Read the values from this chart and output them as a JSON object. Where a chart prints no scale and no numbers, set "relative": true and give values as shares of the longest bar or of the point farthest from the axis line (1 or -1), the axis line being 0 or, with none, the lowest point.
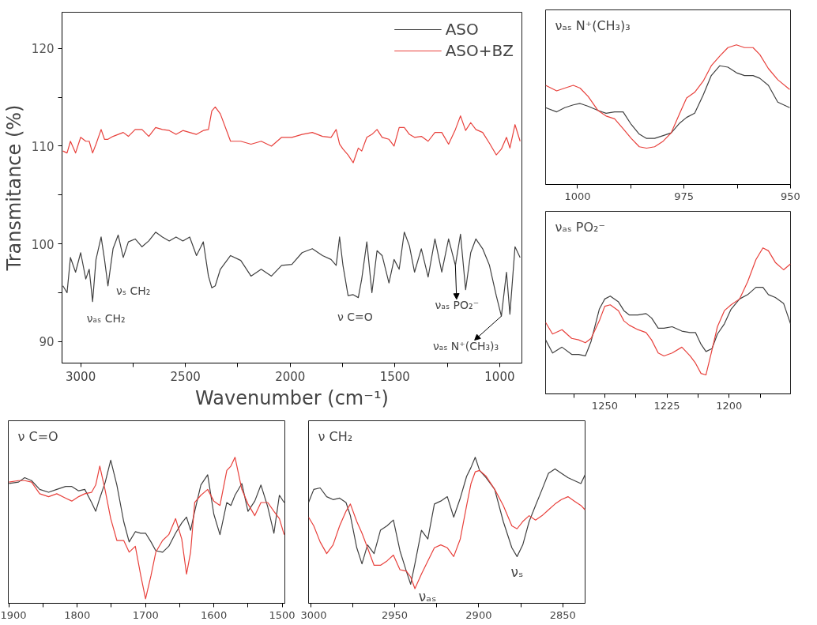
{
  "chart_data": [
    {
      "type": "line",
      "xlabel": "Wavenumber (cm⁻¹)",
      "ylabel": "Transmitance (%)",
      "legend": "top right",
      "grid": false,
      "xlim": [
        3089,
        894
      ],
      "ylim": [
        87.8,
        123.7
      ],
      "xticks": [
        3000,
        {
          "value": 2750,
          "label": null
        },
        2500,
        {
          "value": 2250,
          "label": null
        },
        2000,
        {
          "value": 1750,
          "label": null
        },
        1500,
        {
          "value": 1250,
          "label": null
        },
        1000
      ],
      "yticks": [
        90,
        {
          "value": 95,
          "label": null
        },
        100,
        {
          "value": 105,
          "label": null
        },
        110,
        {
          "value": 115,
          "label": null
        },
        120
      ],
      "x": [
        3084.6,
        3065.0,
        3048.8,
        3024.4,
        3000,
        2975.6,
        2959.3,
        2943.1,
        2926.8,
        2902.4,
        2886.2,
        2869.9,
        2845.5,
        2821.1,
        2796.7,
        2772.4,
        2739.8,
        2707.3,
        2674.8,
        2642.3,
        2609.8,
        2577.2,
        2544.7,
        2512.2,
        2479.7,
        2447.2,
        2414.6,
        2390.2,
        2374.0,
        2357.7,
        2333.3,
        2284.6,
        2235.8,
        2187.0,
        2138.2,
        2089.4,
        2040.7,
        1991.9,
        1943.1,
        1894.3,
        1845.5,
        1804.9,
        1780.5,
        1764.2,
        1748.0,
        1723.6,
        1699.2,
        1674.8,
        1658.5,
        1634.1,
        1609.8,
        1585.4,
        1561.0,
        1528.5,
        1504.1,
        1479.7,
        1455.3,
        1430.9,
        1406.5,
        1374.0,
        1341.5,
        1309.0,
        1276.4,
        1243.9,
        1211.4,
        1187.0,
        1162.6,
        1138.2,
        1113.8,
        1081.3,
        1048.8,
        1016.3,
        991.9,
        967.5,
        951.2,
        926.8,
        902.4
      ],
      "series": [
        {
          "name": "ASO",
          "color": "#404040",
          "values": [
            95.7,
            95.0,
            98.6,
            97.1,
            99.1,
            96.4,
            97.4,
            94.1,
            98.4,
            100.7,
            98.4,
            95.7,
            99.5,
            100.9,
            98.6,
            100.2,
            100.5,
            99.7,
            100.3,
            101.2,
            100.7,
            100.3,
            100.7,
            100.3,
            100.7,
            98.8,
            100.2,
            96.7,
            95.5,
            95.7,
            97.4,
            98.8,
            98.3,
            96.7,
            97.4,
            96.7,
            97.8,
            97.9,
            99.1,
            99.5,
            98.8,
            98.4,
            97.8,
            100.7,
            97.8,
            94.7,
            94.8,
            94.5,
            96.4,
            100.2,
            95.0,
            99.3,
            98.8,
            96.0,
            98.4,
            97.4,
            101.2,
            99.8,
            97.1,
            99.5,
            96.6,
            100.5,
            97.1,
            100.5,
            97.8,
            101.0,
            95.3,
            99.1,
            100.5,
            99.5,
            97.8,
            94.7,
            92.6,
            97.1,
            92.8,
            99.7,
            98.6
          ]
        },
        {
          "name": "ASO+BZ",
          "color": "#e8413c",
          "values": [
            109.5,
            109.3,
            110.5,
            109.3,
            110.9,
            110.5,
            110.5,
            109.3,
            110.2,
            111.7,
            110.7,
            110.7,
            111.0,
            111.2,
            111.4,
            111.0,
            111.7,
            111.7,
            111.0,
            111.9,
            111.7,
            111.6,
            111.2,
            111.6,
            111.4,
            111.2,
            111.6,
            111.7,
            113.6,
            114.0,
            113.3,
            110.5,
            110.5,
            110.2,
            110.5,
            110.0,
            110.9,
            110.9,
            111.2,
            111.4,
            111.0,
            110.9,
            111.7,
            110.2,
            109.7,
            109.1,
            108.3,
            109.8,
            109.5,
            110.9,
            111.2,
            111.7,
            110.9,
            110.7,
            110.0,
            111.9,
            111.9,
            111.2,
            110.9,
            111.0,
            110.5,
            111.4,
            111.4,
            110.2,
            111.7,
            113.1,
            111.6,
            112.4,
            111.7,
            111.4,
            110.3,
            109.1,
            109.7,
            110.9,
            109.8,
            112.2,
            110.5
          ]
        }
      ],
      "annotations": [
        {
          "text": "νₐₛ CH₂",
          "x": 2943.1,
          "y": 94.1
        },
        {
          "text": "νₛ CH₂",
          "x": 2869.9,
          "y": 95.7
        },
        {
          "text": "ν C=O",
          "x": 1674.8,
          "y": 94.5
        },
        {
          "text": "νₐₛ PO₂⁻",
          "x": 1211.4,
          "y": 97.8
        },
        {
          "text": "νₐₛ N⁺(CH₃)₃",
          "x": 991.9,
          "y": 92.6
        }
      ]
    },
    {
      "type": "line",
      "title": "νₐₛ N⁺(CH₃)₃",
      "relative": true,
      "tick_labels": "x",
      "grid": false,
      "legend": false,
      "xlim": [
        1007.5,
        950
      ],
      "xticks": [
        1000,
        {
          "value": 987.5,
          "label": null
        },
        975,
        {
          "value": 962.5,
          "label": null
        },
        950
      ],
      "x": [
        1007.5,
        1004.9,
        1003.0,
        1001.0,
        999.4,
        997.5,
        995.2,
        993.3,
        991.3,
        989.3,
        987.4,
        985.5,
        983.8,
        981.9,
        979.9,
        978.0,
        976.0,
        974.4,
        972.5,
        970.5,
        968.6,
        966.6,
        964.7,
        962.7,
        960.8,
        958.8,
        957.2,
        955.2,
        953.0,
        950.2
      ],
      "series": [
        {
          "color": "#404040",
          "values": [
            0.55,
            0.52,
            0.55,
            0.57,
            0.58,
            0.56,
            0.53,
            0.51,
            0.52,
            0.52,
            0.43,
            0.36,
            0.33,
            0.33,
            0.35,
            0.37,
            0.44,
            0.48,
            0.51,
            0.64,
            0.78,
            0.85,
            0.84,
            0.8,
            0.78,
            0.78,
            0.76,
            0.71,
            0.59,
            0.55
          ]
        },
        {
          "color": "#e8413c",
          "values": [
            0.71,
            0.67,
            0.69,
            0.71,
            0.69,
            0.63,
            0.53,
            0.49,
            0.47,
            0.4,
            0.33,
            0.27,
            0.26,
            0.27,
            0.31,
            0.37,
            0.51,
            0.62,
            0.66,
            0.74,
            0.85,
            0.92,
            0.98,
            1.0,
            0.98,
            0.98,
            0.93,
            0.83,
            0.75,
            0.68
          ]
        }
      ]
    },
    {
      "type": "line",
      "title": "νₐₛ PO₂⁻",
      "relative": true,
      "tick_labels": "x",
      "grid": false,
      "legend": false,
      "xlim": [
        1273.8,
        1175.3
      ],
      "xticks": [
        {
          "value": 1262.5,
          "label": null
        },
        1250,
        {
          "value": 1237.5,
          "label": null
        },
        1225,
        {
          "value": 1212.5,
          "label": null
        },
        1200,
        {
          "value": 1187.5,
          "label": null
        }
      ],
      "x": [
        1273.8,
        1271.0,
        1267.2,
        1263.3,
        1260.5,
        1257.8,
        1255.5,
        1252.2,
        1250.0,
        1247.8,
        1244.5,
        1242.3,
        1240.1,
        1236.7,
        1233.4,
        1231.2,
        1228.5,
        1226.2,
        1222.9,
        1219.0,
        1215.7,
        1213.5,
        1211.3,
        1209.3,
        1206.9,
        1204.7,
        1201.9,
        1199.2,
        1195.8,
        1192.5,
        1189.2,
        1186.4,
        1184.2,
        1181.4,
        1178.1,
        1175.3
      ],
      "series": [
        {
          "color": "#404040",
          "values": [
            0.37,
            0.28,
            0.32,
            0.27,
            0.27,
            0.26,
            0.36,
            0.58,
            0.65,
            0.67,
            0.63,
            0.57,
            0.54,
            0.54,
            0.55,
            0.52,
            0.45,
            0.45,
            0.46,
            0.43,
            0.42,
            0.42,
            0.34,
            0.29,
            0.31,
            0.41,
            0.48,
            0.58,
            0.65,
            0.68,
            0.73,
            0.73,
            0.68,
            0.66,
            0.62,
            0.48
          ]
        },
        {
          "color": "#e8413c",
          "values": [
            0.49,
            0.41,
            0.44,
            0.38,
            0.37,
            0.35,
            0.38,
            0.5,
            0.6,
            0.61,
            0.57,
            0.5,
            0.47,
            0.44,
            0.42,
            0.37,
            0.28,
            0.26,
            0.28,
            0.32,
            0.26,
            0.21,
            0.14,
            0.13,
            0.3,
            0.46,
            0.57,
            0.61,
            0.65,
            0.77,
            0.92,
            1.0,
            0.98,
            0.9,
            0.85,
            0.89
          ]
        }
      ]
    },
    {
      "type": "line",
      "title": "ν C=O",
      "relative": true,
      "tick_labels": "x",
      "grid": false,
      "legend": false,
      "xlim": [
        1901,
        1496
      ],
      "xticks": [
        1900,
        {
          "value": 1850,
          "label": null
        },
        1800,
        {
          "value": 1750,
          "label": null
        },
        1700,
        {
          "value": 1650,
          "label": null
        },
        1600,
        {
          "value": 1550,
          "label": null
        },
        1500
      ],
      "x": [
        1900,
        1886,
        1877,
        1867,
        1855,
        1842,
        1830,
        1817,
        1808,
        1798,
        1789,
        1779,
        1773,
        1767,
        1759,
        1751,
        1742,
        1732,
        1724,
        1715,
        1707,
        1700,
        1692,
        1685,
        1675,
        1666,
        1656,
        1647,
        1640,
        1634,
        1628,
        1619,
        1609,
        1600,
        1591,
        1581,
        1575,
        1569,
        1559,
        1550,
        1540,
        1531,
        1521,
        1512,
        1504,
        1497
      ],
      "series": [
        {
          "color": "#404040",
          "values": [
            0.82,
            0.83,
            0.86,
            0.84,
            0.78,
            0.76,
            0.78,
            0.8,
            0.8,
            0.77,
            0.78,
            0.69,
            0.63,
            0.72,
            0.83,
            0.98,
            0.81,
            0.56,
            0.42,
            0.49,
            0.48,
            0.48,
            0.42,
            0.36,
            0.35,
            0.39,
            0.48,
            0.55,
            0.59,
            0.5,
            0.63,
            0.81,
            0.88,
            0.61,
            0.47,
            0.69,
            0.67,
            0.74,
            0.82,
            0.63,
            0.7,
            0.81,
            0.66,
            0.48,
            0.74,
            0.69
          ]
        },
        {
          "color": "#e8413c",
          "values": [
            0.83,
            0.84,
            0.84,
            0.83,
            0.75,
            0.73,
            0.75,
            0.72,
            0.7,
            0.73,
            0.75,
            0.76,
            0.81,
            0.94,
            0.77,
            0.58,
            0.43,
            0.43,
            0.35,
            0.39,
            0.19,
            0.03,
            0.19,
            0.35,
            0.43,
            0.47,
            0.58,
            0.44,
            0.2,
            0.35,
            0.69,
            0.74,
            0.78,
            0.7,
            0.67,
            0.91,
            0.94,
            1.0,
            0.78,
            0.68,
            0.6,
            0.69,
            0.69,
            0.63,
            0.58,
            0.47
          ]
        }
      ]
    },
    {
      "type": "line",
      "title": "ν CH₂",
      "relative": true,
      "tick_labels": "x",
      "grid": false,
      "legend": false,
      "xlim": [
        3001.3,
        2836.7
      ],
      "xticks": [
        3000,
        {
          "value": 2975,
          "label": null
        },
        2950,
        {
          "value": 2925,
          "label": null
        },
        2900,
        {
          "value": 2875,
          "label": null
        },
        2850
      ],
      "x": [
        3001.3,
        2998.2,
        2994.4,
        2990.5,
        2986.7,
        2982.8,
        2979.0,
        2976.4,
        2972.6,
        2969.5,
        2966.2,
        2962.3,
        2958.5,
        2954.6,
        2950.8,
        2946.9,
        2943.1,
        2940.5,
        2938.0,
        2934.1,
        2930.3,
        2926.4,
        2922.6,
        2918.7,
        2914.9,
        2911.0,
        2907.2,
        2904.6,
        2902.1,
        2899.5,
        2895.6,
        2890.5,
        2885.4,
        2880.3,
        2877.2,
        2873.8,
        2870.0,
        2866.2,
        2862.3,
        2858.5,
        2854.6,
        2850.8,
        2846.9,
        2843.1,
        2839.2,
        2836.7
      ],
      "series": [
        {
          "color": "#404040",
          "values": [
            0.69,
            0.78,
            0.79,
            0.73,
            0.71,
            0.72,
            0.69,
            0.6,
            0.38,
            0.27,
            0.4,
            0.34,
            0.5,
            0.53,
            0.57,
            0.36,
            0.22,
            0.13,
            0.27,
            0.5,
            0.44,
            0.68,
            0.7,
            0.73,
            0.59,
            0.72,
            0.87,
            0.93,
            1.0,
            0.91,
            0.86,
            0.78,
            0.56,
            0.38,
            0.32,
            0.4,
            0.56,
            0.67,
            0.78,
            0.89,
            0.92,
            0.89,
            0.86,
            0.84,
            0.82,
            0.88
          ]
        },
        {
          "color": "#e8413c",
          "values": [
            0.59,
            0.53,
            0.42,
            0.34,
            0.4,
            0.53,
            0.63,
            0.68,
            0.56,
            0.48,
            0.38,
            0.26,
            0.26,
            0.29,
            0.33,
            0.23,
            0.22,
            0.18,
            0.1,
            0.2,
            0.29,
            0.38,
            0.4,
            0.38,
            0.32,
            0.44,
            0.67,
            0.82,
            0.9,
            0.91,
            0.87,
            0.78,
            0.67,
            0.53,
            0.51,
            0.56,
            0.6,
            0.57,
            0.6,
            0.64,
            0.68,
            0.71,
            0.73,
            0.7,
            0.67,
            0.64
          ]
        }
      ],
      "annotations": [
        {
          "text": "νₐₛ",
          "x": 2938.0,
          "y": 0.1
        },
        {
          "text": "νₛ",
          "x": 2877.2,
          "y": 0.32
        }
      ]
    }
  ]
}
